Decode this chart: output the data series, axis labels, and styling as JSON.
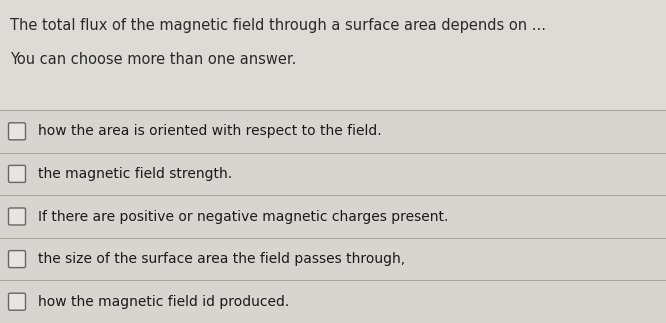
{
  "title_line1": "The total flux of the magnetic field through a surface area depends on ...",
  "subtitle": "You can choose more than one answer.",
  "options": [
    "how the area is oriented with respect to the field.",
    "the magnetic field strength.",
    "If there are positive or negative magnetic charges present.",
    "the size of the surface area the field passes through,",
    "how the magnetic field id produced."
  ],
  "bg_color": "#dedad5",
  "panel_color": "#d8d5d0",
  "line_color": "#aaa69f",
  "title_color": "#2a2a2a",
  "option_color": "#1a1a1a",
  "checkbox_edge_color": "#666666",
  "checkbox_fill": "#e8e5e0",
  "title_fontsize": 10.5,
  "subtitle_fontsize": 10.5,
  "option_fontsize": 10.0,
  "fig_width": 6.66,
  "fig_height": 3.23,
  "fig_dpi": 100
}
